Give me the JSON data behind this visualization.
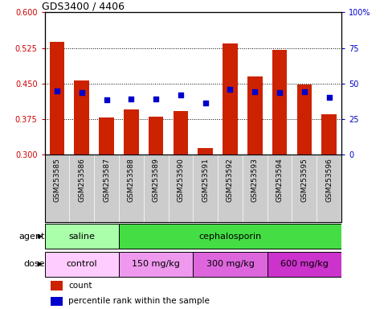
{
  "title": "GDS3400 / 4406",
  "samples": [
    "GSM253585",
    "GSM253586",
    "GSM253587",
    "GSM253588",
    "GSM253589",
    "GSM253590",
    "GSM253591",
    "GSM253592",
    "GSM253593",
    "GSM253594",
    "GSM253595",
    "GSM253596"
  ],
  "bar_values": [
    0.537,
    0.457,
    0.378,
    0.395,
    0.38,
    0.392,
    0.313,
    0.534,
    0.465,
    0.52,
    0.447,
    0.385
  ],
  "blue_values": [
    0.435,
    0.43,
    0.415,
    0.418,
    0.418,
    0.425,
    0.408,
    0.437,
    0.432,
    0.43,
    0.432,
    0.42
  ],
  "bar_color": "#cc2200",
  "blue_color": "#0000cc",
  "ylim_left": [
    0.3,
    0.6
  ],
  "ylim_right": [
    0,
    100
  ],
  "yticks_left": [
    0.3,
    0.375,
    0.45,
    0.525,
    0.6
  ],
  "yticks_right": [
    0,
    25,
    50,
    75,
    100
  ],
  "agent_groups": [
    {
      "label": "saline",
      "start": 0,
      "end": 3,
      "color": "#aaffaa"
    },
    {
      "label": "cephalosporin",
      "start": 3,
      "end": 12,
      "color": "#44dd44"
    }
  ],
  "dose_groups": [
    {
      "label": "control",
      "start": 0,
      "end": 3,
      "color": "#ffccff"
    },
    {
      "label": "150 mg/kg",
      "start": 3,
      "end": 6,
      "color": "#ee99ee"
    },
    {
      "label": "300 mg/kg",
      "start": 6,
      "end": 9,
      "color": "#dd66dd"
    },
    {
      "label": "600 mg/kg",
      "start": 9,
      "end": 12,
      "color": "#cc33cc"
    }
  ],
  "legend_count_label": "count",
  "legend_pct_label": "percentile rank within the sample",
  "xtick_bg_color": "#cccccc",
  "ylabel_left_color": "#cc0000",
  "ylabel_right_color": "#0000cc",
  "bar_width": 0.6,
  "agent_label": "agent",
  "dose_label": "dose"
}
